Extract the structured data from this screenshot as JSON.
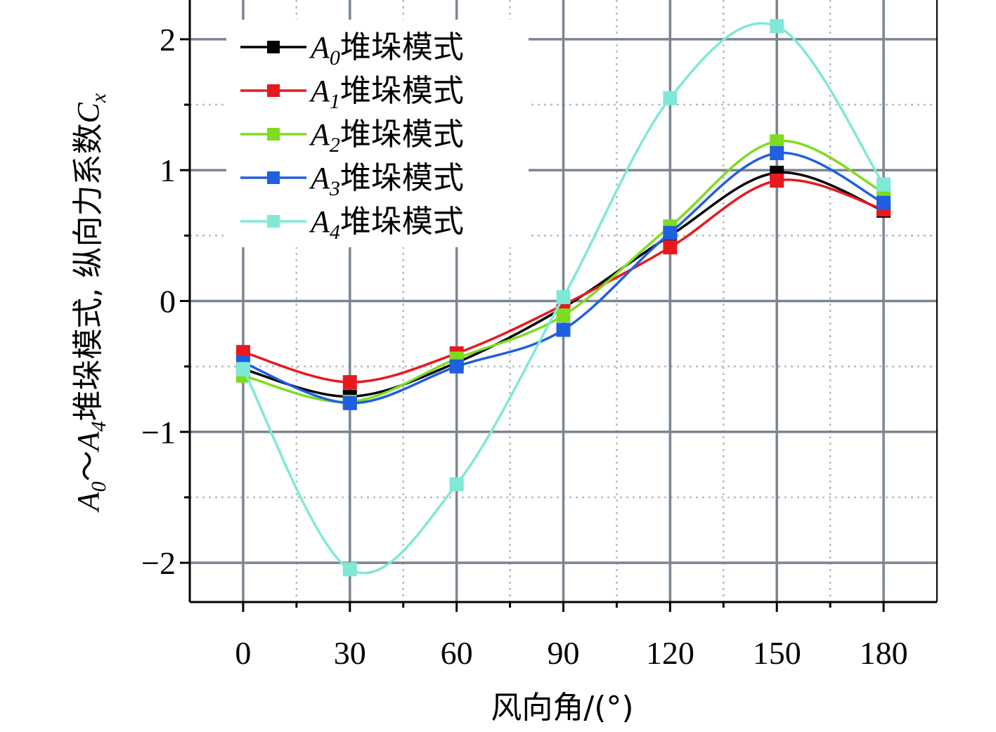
{
  "chart_data": {
    "type": "line",
    "title": "",
    "xlabel": "风向角/(°)",
    "ylabel": {
      "p1": "A",
      "s1": "0",
      "p2": "～",
      "p3": "A",
      "s3": "4",
      "p4": "堆垛模式, 纵向力系数",
      "p5": "C",
      "s5": "x"
    },
    "x": [
      0,
      30,
      60,
      90,
      120,
      150,
      180
    ],
    "x_tick_labels": [
      "0",
      "30",
      "60",
      "90",
      "120",
      "150",
      "180"
    ],
    "y_tick_labels": [
      "−2",
      "−1",
      "0",
      "1",
      "2"
    ],
    "y_ticks": [
      -2,
      -1,
      0,
      1,
      2
    ],
    "xlim": [
      -15,
      195
    ],
    "ylim": [
      -2.3,
      2.3
    ],
    "grid": true,
    "legend_position": "top-left",
    "series": [
      {
        "name_prefix": "A",
        "name_sub": "0",
        "name_suffix": "堆垛模式",
        "color": "#000000",
        "values": [
          -0.52,
          -0.73,
          -0.47,
          -0.05,
          0.5,
          0.98,
          0.69
        ]
      },
      {
        "name_prefix": "A",
        "name_sub": "1",
        "name_suffix": "堆垛模式",
        "color": "#e8191e",
        "values": [
          -0.39,
          -0.62,
          -0.4,
          -0.03,
          0.41,
          0.92,
          0.7
        ]
      },
      {
        "name_prefix": "A",
        "name_sub": "2",
        "name_suffix": "堆垛模式",
        "color": "#7ddc1f",
        "values": [
          -0.57,
          -0.77,
          -0.44,
          -0.11,
          0.57,
          1.22,
          0.83
        ]
      },
      {
        "name_prefix": "A",
        "name_sub": "3",
        "name_suffix": "堆垛模式",
        "color": "#1f5fe0",
        "values": [
          -0.47,
          -0.78,
          -0.5,
          -0.22,
          0.52,
          1.13,
          0.75
        ]
      },
      {
        "name_prefix": "A",
        "name_sub": "4",
        "name_suffix": "堆垛模式",
        "color": "#7fe8d6",
        "values": [
          -0.52,
          -2.05,
          -1.4,
          0.03,
          1.55,
          2.1,
          0.89
        ]
      }
    ]
  }
}
